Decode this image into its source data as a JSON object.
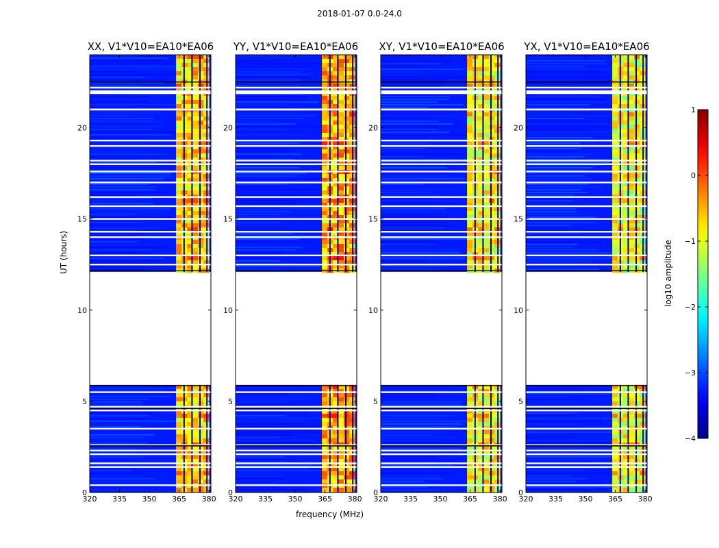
{
  "suptitle": "2018-01-07 0.0-24.0",
  "colorbar": {
    "label": "log10 amplitude",
    "ticks": [
      1,
      0,
      -1,
      -2,
      -3,
      -4
    ],
    "tick_labels": [
      "1",
      "0",
      "−1",
      "−2",
      "−3",
      "−4"
    ],
    "range": [
      -4,
      1
    ],
    "colormap": "jet"
  },
  "chart_data": {
    "type": "heatmap",
    "xlabel": "frequency (MHz)",
    "ylabel": "UT (hours)",
    "xlim": [
      320,
      381
    ],
    "ylim": [
      0,
      24
    ],
    "xticks": [
      320,
      335,
      350,
      365,
      380
    ],
    "yticks": [
      0,
      5,
      10,
      15,
      20
    ],
    "data_gap_hours": [
      5.9,
      12.1
    ],
    "channel_band_MHz": [
      363.5,
      380
    ],
    "panels": [
      {
        "title": "XX, V1*V10=EA10*EA06",
        "pol": "XX",
        "band_level": -0.7
      },
      {
        "title": "YY, V1*V10=EA10*EA06",
        "pol": "YY",
        "band_level": -0.5
      },
      {
        "title": "XY, V1*V10=EA10*EA06",
        "pol": "XY",
        "band_level": -0.9
      },
      {
        "title": "YX, V1*V10=EA10*EA06",
        "pol": "YX",
        "band_level": -1.0
      }
    ],
    "flagged_rows_UT": [
      0.4,
      1.4,
      1.6,
      2.1,
      2.3,
      2.6,
      3.5,
      4.5,
      4.7,
      5.5,
      12.5,
      13.0,
      14.0,
      14.3,
      15.0,
      15.7,
      16.2,
      17.0,
      17.6,
      18.0,
      18.2,
      19.0,
      19.3,
      21.0,
      22.0,
      22.2
    ]
  }
}
